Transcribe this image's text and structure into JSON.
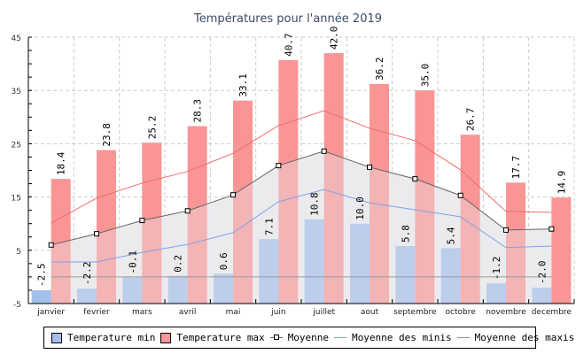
{
  "chart_data": {
    "type": "bar",
    "title": "Températures pour l'année 2019",
    "xlabel": "",
    "ylabel": "",
    "ylim": [
      -5,
      45
    ],
    "yticks": [
      45,
      35,
      25,
      15,
      5,
      -5
    ],
    "ytick_labels": [
      "45",
      "35",
      "25",
      "15",
      "5",
      "-5"
    ],
    "grid": true,
    "legend_position": "bottom",
    "categories": [
      "janvier",
      "fevrier",
      "mars",
      "avril",
      "mai",
      "juin",
      "juillet",
      "aout",
      "septembre",
      "octobre",
      "novembre",
      "decembre"
    ],
    "series": [
      {
        "name": "Temperature min",
        "type": "bar",
        "color": "#A3BFEB",
        "values": [
          -2.5,
          -2.2,
          -0.1,
          0.2,
          0.6,
          7.1,
          10.8,
          10.0,
          5.8,
          5.4,
          -1.2,
          -2.0
        ],
        "labels": [
          "-2.5",
          "-2.2",
          "-0.1",
          "0.2",
          "0.6",
          "7.1",
          "10.8",
          "10.0",
          "5.8",
          "5.4",
          "-1.2",
          "-2.0"
        ]
      },
      {
        "name": "Temperature max",
        "type": "bar",
        "color": "#F99595",
        "values": [
          18.4,
          23.8,
          25.2,
          28.3,
          33.1,
          40.7,
          42.0,
          36.2,
          35.0,
          26.7,
          17.7,
          14.9
        ],
        "labels": [
          "18.4",
          "23.8",
          "25.2",
          "28.3",
          "33.1",
          "40.7",
          "42.0",
          "36.2",
          "35.0",
          "26.7",
          "17.7",
          "14.9"
        ]
      },
      {
        "name": "Moyenne",
        "type": "area-line",
        "color": "#666666",
        "fill": "#EBECEE",
        "values": [
          6.0,
          8.1,
          10.6,
          12.4,
          15.4,
          20.9,
          23.6,
          20.6,
          18.4,
          15.3,
          8.8,
          9.0
        ]
      },
      {
        "name": "Moyenne des minis",
        "type": "line",
        "color": "#7DA2E8",
        "values": [
          2.8,
          2.8,
          4.6,
          6.1,
          8.3,
          14.1,
          16.4,
          13.9,
          12.6,
          11.3,
          5.5,
          5.8
        ]
      },
      {
        "name": "Moyenne des maxis",
        "type": "line",
        "color": "#F26B6B",
        "values": [
          10.1,
          14.8,
          17.6,
          19.8,
          23.2,
          28.4,
          31.2,
          27.9,
          25.6,
          20.1,
          12.3,
          12.1
        ]
      }
    ],
    "reference_line": {
      "value": 0,
      "color": "#999999"
    }
  },
  "legend": {
    "items": [
      {
        "label": "Temperature min",
        "kind": "box",
        "color": "#A3BFEB"
      },
      {
        "label": "Temperature max",
        "kind": "box",
        "color": "#F99595"
      },
      {
        "label": "Moyenne",
        "kind": "marker-line",
        "color": "#666666"
      },
      {
        "label": "Moyenne des minis",
        "kind": "line",
        "color": "#7DA2E8"
      },
      {
        "label": "Moyenne des maxis",
        "kind": "line",
        "color": "#F26B6B"
      }
    ]
  }
}
